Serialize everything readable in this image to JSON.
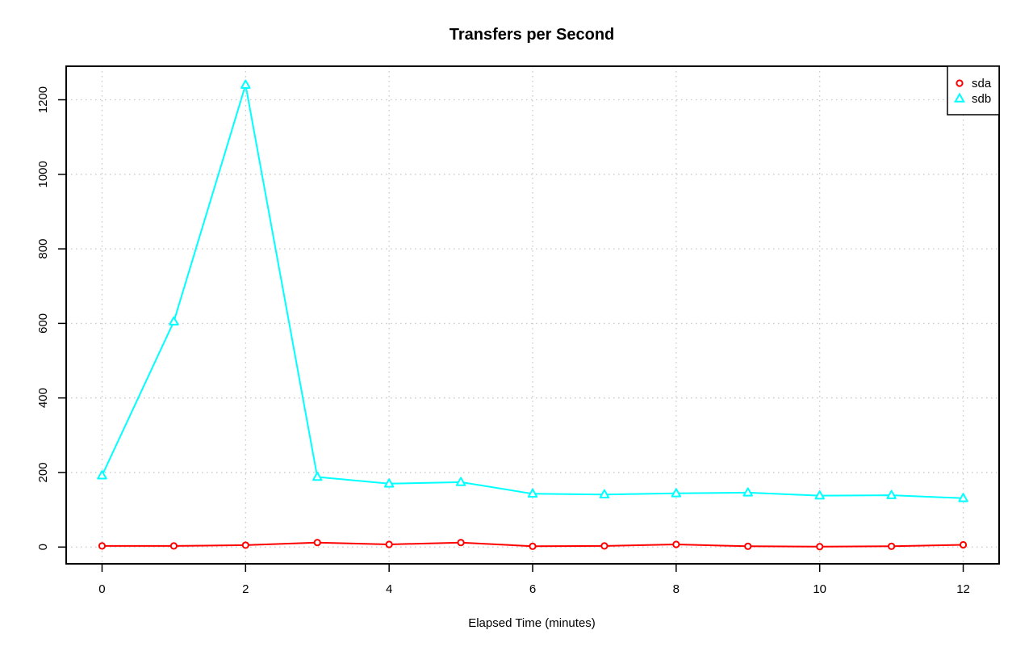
{
  "chart_data": {
    "type": "line",
    "title": "Transfers per Second",
    "xlabel": "Elapsed Time (minutes)",
    "ylabel": "",
    "x": [
      0,
      1,
      2,
      3,
      4,
      5,
      6,
      7,
      8,
      9,
      10,
      11,
      12
    ],
    "xlim": [
      -0.5,
      12.5
    ],
    "ylim": [
      -45,
      1290
    ],
    "x_ticks": [
      0,
      2,
      4,
      6,
      8,
      10,
      12
    ],
    "y_ticks": [
      0,
      200,
      400,
      600,
      800,
      1000,
      1200
    ],
    "grid": true,
    "legend_position": "top-right",
    "series": [
      {
        "name": "sda",
        "color": "#ff0000",
        "marker": "circle",
        "values": [
          3,
          3,
          5,
          12,
          7,
          12,
          2,
          3,
          7,
          2,
          1,
          2,
          6
        ]
      },
      {
        "name": "sdb",
        "color": "#00ffff",
        "marker": "triangle",
        "values": [
          192,
          605,
          1240,
          188,
          170,
          174,
          143,
          141,
          144,
          146,
          138,
          139,
          131
        ]
      }
    ]
  }
}
